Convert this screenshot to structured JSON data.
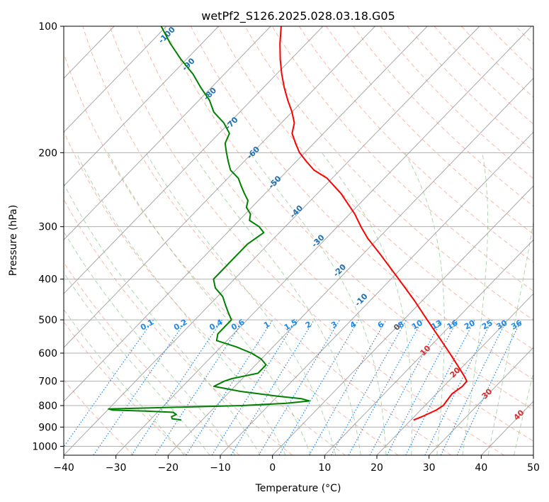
{
  "chart_data": {
    "type": "line",
    "title": "wetPf2_S126.2025.028.03.18.G05",
    "xlabel": "Temperature (°C)",
    "ylabel": "Pressure (hPa)",
    "xlim": [
      -40,
      50
    ],
    "ylim": [
      1050,
      100
    ],
    "y_scale": "log",
    "grid": true,
    "skew": true,
    "x_ticks": [
      "−40",
      "−30",
      "−20",
      "−10",
      "0",
      "10",
      "20",
      "30",
      "40",
      "50"
    ],
    "y_ticks": [
      "100",
      "200",
      "300",
      "400",
      "500",
      "600",
      "700",
      "800",
      "900",
      "1000"
    ],
    "series": [
      {
        "color": "#ff0000",
        "pressure": [
          866,
          850,
          820,
          800,
          780,
          750,
          720,
          700,
          680,
          650,
          600,
          550,
          500,
          450,
          400,
          350,
          320,
          300,
          280,
          250,
          230,
          220,
          210,
          200,
          190,
          180,
          170,
          160,
          150,
          140,
          130,
          120,
          110,
          100
        ],
        "temperature": [
          20.5,
          21.5,
          23.0,
          23.5,
          23.3,
          23.0,
          23.6,
          23.5,
          22.0,
          19.5,
          15.0,
          10.0,
          4.5,
          -1.5,
          -8.5,
          -16.5,
          -22.0,
          -25.5,
          -29.0,
          -35.5,
          -41.0,
          -45.0,
          -48.0,
          -51.0,
          -53.5,
          -56.0,
          -57.5,
          -60.0,
          -63.0,
          -66.0,
          -69.0,
          -72.0,
          -75.0,
          -78.0
        ]
      },
      {
        "color": "#008000",
        "pressure": [
          866,
          860,
          850,
          840,
          830,
          825,
          820,
          815,
          810,
          800,
          790,
          780,
          770,
          760,
          750,
          740,
          720,
          700,
          690,
          680,
          670,
          660,
          650,
          640,
          620,
          600,
          580,
          560,
          540,
          520,
          500,
          480,
          460,
          440,
          420,
          400,
          380,
          350,
          330,
          310,
          300,
          290,
          280,
          270,
          260,
          250,
          240,
          230,
          220,
          210,
          200,
          190,
          180,
          170,
          160,
          150,
          140,
          130,
          120,
          110,
          100
        ],
        "temperature": [
          -24.0,
          -26.0,
          -26.5,
          -26.0,
          -27.0,
          -32.0,
          -39.0,
          -40.0,
          -32.0,
          -15.0,
          -7.0,
          -3.0,
          -5.0,
          -10.0,
          -14.0,
          -18.0,
          -24.0,
          -23.0,
          -22.0,
          -20.0,
          -18.0,
          -18.0,
          -18.0,
          -18.0,
          -20.0,
          -23.0,
          -27.0,
          -32.0,
          -33.0,
          -33.0,
          -33.0,
          -35.0,
          -37.0,
          -39.0,
          -42.0,
          -44.0,
          -44.0,
          -44.0,
          -44.0,
          -43.0,
          -45.0,
          -48.0,
          -49.0,
          -51.0,
          -52.0,
          -54.0,
          -56.0,
          -58.0,
          -61.0,
          -63.0,
          -65.0,
          -67.0,
          -68.0,
          -71.0,
          -75.0,
          -78.0,
          -82.0,
          -86.0,
          -91.0,
          -96.0,
          -101.0
        ]
      }
    ],
    "mixing_ratio_labels": [
      "0.1",
      "0.2",
      "0.4",
      "0.6",
      "1",
      "1.5",
      "2",
      "3",
      "4",
      "6",
      "8",
      "10",
      "13",
      "16",
      "20",
      "25",
      "30",
      "36"
    ],
    "dry_adiabat_labels": [
      "-100",
      "-90",
      "-80",
      "-70",
      "-60",
      "-50",
      "-40",
      "-30",
      "-20",
      "-10"
    ],
    "moist_adiabat_labels": [
      "0",
      "10",
      "20",
      "30",
      "40"
    ],
    "colors": {
      "temperature": "#ff0000",
      "dewpoint": "#008000",
      "dry_adiabat": "#f08060",
      "moist_adiabat": "#60b060",
      "mixing_ratio": "#1e88e5",
      "isotherm": "#999999",
      "isobar": "#b0b0b0"
    }
  }
}
